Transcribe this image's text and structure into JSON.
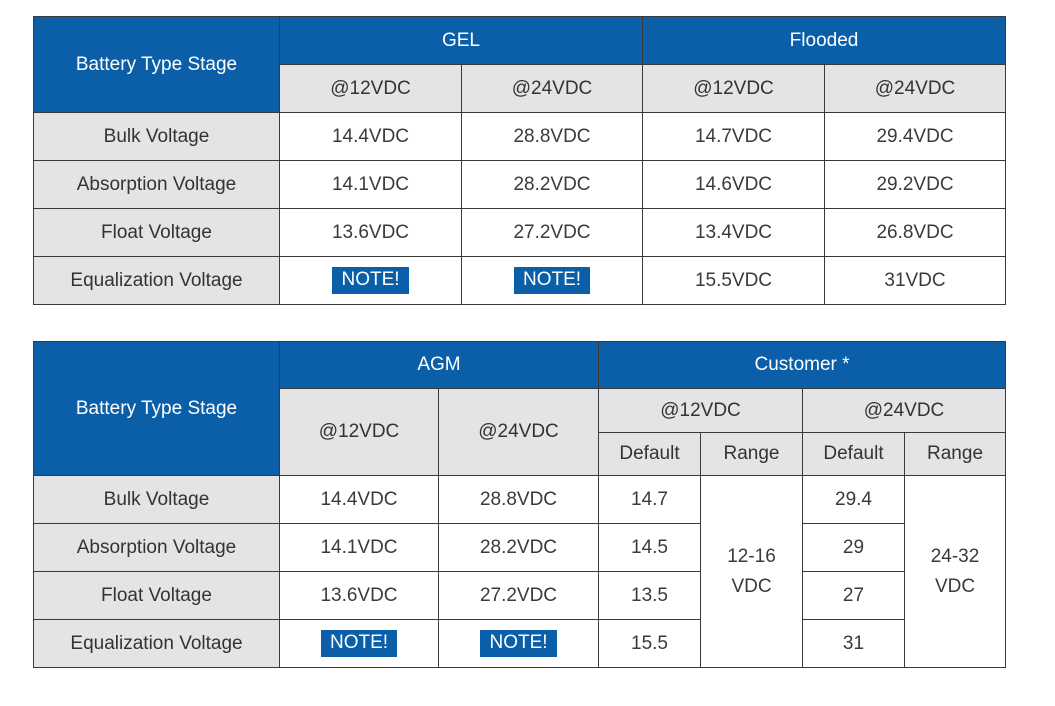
{
  "table1": {
    "corner": "Battery Type Stage",
    "groups": [
      "GEL",
      "Flooded"
    ],
    "subheaders": [
      "@12VDC",
      "@24VDC",
      "@12VDC",
      "@24VDC"
    ],
    "rows": [
      {
        "label": "Bulk Voltage",
        "cells": [
          "14.4VDC",
          "28.8VDC",
          "14.7VDC",
          "29.4VDC"
        ]
      },
      {
        "label": "Absorption Voltage",
        "cells": [
          "14.1VDC",
          "28.2VDC",
          "14.6VDC",
          "29.2VDC"
        ]
      },
      {
        "label": "Float Voltage",
        "cells": [
          "13.6VDC",
          "27.2VDC",
          "13.4VDC",
          "26.8VDC"
        ]
      },
      {
        "label": "Equalization Voltage",
        "cells": [
          "NOTE!",
          "NOTE!",
          "15.5VDC",
          "31VDC"
        ]
      }
    ]
  },
  "table2": {
    "corner": "Battery Type Stage",
    "groups": [
      "AGM",
      "Customer *"
    ],
    "agm_subheaders": [
      "@12VDC",
      "@24VDC"
    ],
    "customer_subheaders": [
      "@12VDC",
      "@24VDC"
    ],
    "customer_columns": [
      "Default",
      "Range",
      "Default",
      "Range"
    ],
    "rows": [
      {
        "label": "Bulk Voltage",
        "agm": [
          "14.4VDC",
          "28.8VDC"
        ],
        "default12": "14.7",
        "default24": "29.4"
      },
      {
        "label": "Absorption Voltage",
        "agm": [
          "14.1VDC",
          "28.2VDC"
        ],
        "default12": "14.5",
        "default24": "29"
      },
      {
        "label": "Float Voltage",
        "agm": [
          "13.6VDC",
          "27.2VDC"
        ],
        "default12": "13.5",
        "default24": "27"
      },
      {
        "label": "Equalization Voltage",
        "agm": [
          "NOTE!",
          "NOTE!"
        ],
        "default12": "15.5",
        "default24": "31"
      }
    ],
    "range12": [
      "12-16",
      "VDC"
    ],
    "range24": [
      "24-32",
      "VDC"
    ]
  },
  "colors": {
    "header_blue": "#0a5fa8",
    "header_gray": "#e4e4e6",
    "border": "#3a3a3a"
  }
}
